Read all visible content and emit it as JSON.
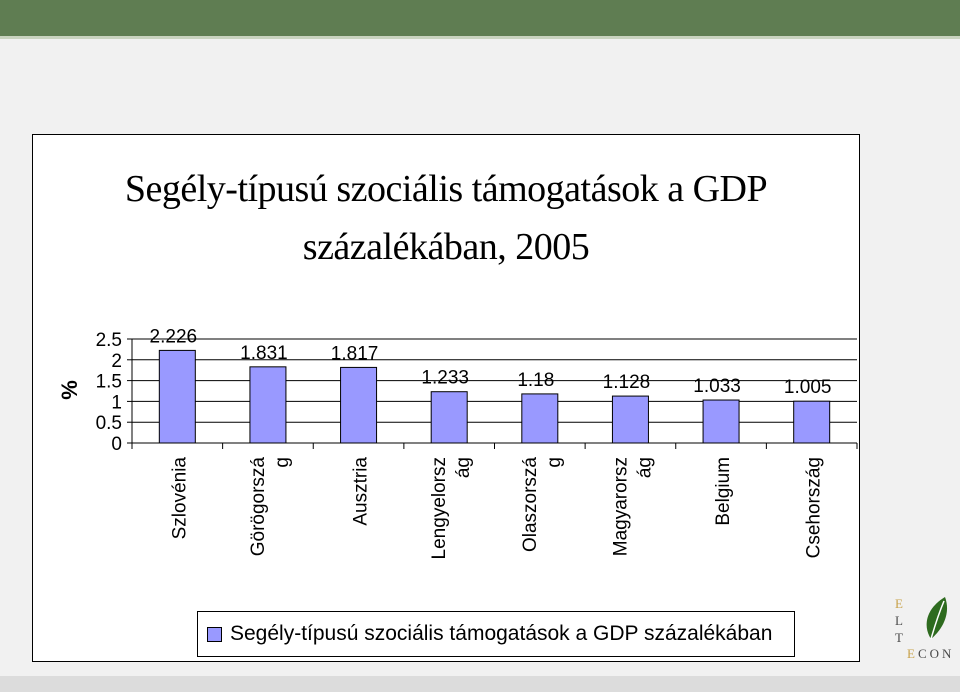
{
  "chart_data": {
    "type": "bar",
    "title": "Segély-típusú szociális támogatások a GDP százalékában, 2005",
    "ylabel": "%",
    "ylim": [
      0,
      2.5
    ],
    "yticks": [
      "0",
      "0.5",
      "1",
      "1.5",
      "2",
      "2.5"
    ],
    "grid": true,
    "legend_position": "bottom",
    "categories": [
      [
        "Szlovénia"
      ],
      [
        "Görögorszá",
        "g"
      ],
      [
        "Ausztria"
      ],
      [
        "Lengyelorsz",
        "ág"
      ],
      [
        "Olaszorszá",
        "g"
      ],
      [
        "Magyarorsz",
        "ág"
      ],
      [
        "Belgium"
      ],
      [
        "Csehország"
      ]
    ],
    "series": [
      {
        "name": "Segély-típusú szociális támogatások a GDP százalékában",
        "values": [
          2.226,
          1.831,
          1.817,
          1.233,
          1.18,
          1.128,
          1.033,
          1.005
        ],
        "labels": [
          "2.226",
          "1.831",
          "1.817",
          "1.233",
          "1.18",
          "1.128",
          "1.033",
          "1.005"
        ],
        "color": "#9999ff"
      }
    ]
  },
  "logo": {
    "letters": [
      "E",
      "L",
      "T"
    ],
    "suffix": "CON",
    "leaf_color": "#2e6b1f"
  }
}
